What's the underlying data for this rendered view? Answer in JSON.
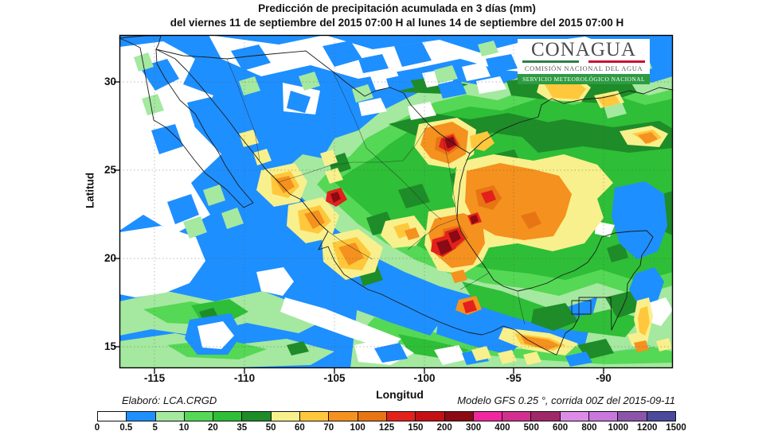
{
  "title": "Predicción de precipitación acumulada en 3 días (mm)",
  "subtitle": "del  viernes 11 de septiembre del 2015 07:00 H  al  lunes 14 de septiembre del 2015 07:00 H",
  "logo": {
    "name": "CONAGUA",
    "line1": "COMISIÓN NACIONAL DEL AGUA",
    "line2": "SERVICIO METEOROLÓGICO NACIONAL",
    "green": "#2E7D46",
    "red": "#C8102E"
  },
  "axes": {
    "y_label": "Latitud",
    "x_label": "Longitud",
    "y_ticks": [
      "30",
      "25",
      "20",
      "15"
    ],
    "x_ticks": [
      "-115",
      "-110",
      "-105",
      "-100",
      "-95",
      "-90"
    ]
  },
  "credits": {
    "left": "Elaboró: LCA.CRGD",
    "right": "Modelo GFS 0.25 °, corrida 00Z del 2015-09-11"
  },
  "legend": {
    "units": "mm",
    "tick_labels": [
      "0",
      "0.5",
      "5",
      "10",
      "20",
      "35",
      "50",
      "60",
      "70",
      "100",
      "125",
      "150",
      "200",
      "300",
      "400",
      "500",
      "600",
      "800",
      "1000",
      "1200",
      "1500"
    ],
    "colors": [
      "#FFFFFF",
      "#1E8FFF",
      "#A5E8A0",
      "#55D855",
      "#2EBE37",
      "#1E8C28",
      "#F8F08C",
      "#FFC83C",
      "#F5911E",
      "#E87514",
      "#E3211C",
      "#C41014",
      "#8B0A14",
      "#F028A0",
      "#D23090",
      "#A02868",
      "#DC8CE6",
      "#C878DC",
      "#8A55A8",
      "#4A4A9C"
    ]
  }
}
